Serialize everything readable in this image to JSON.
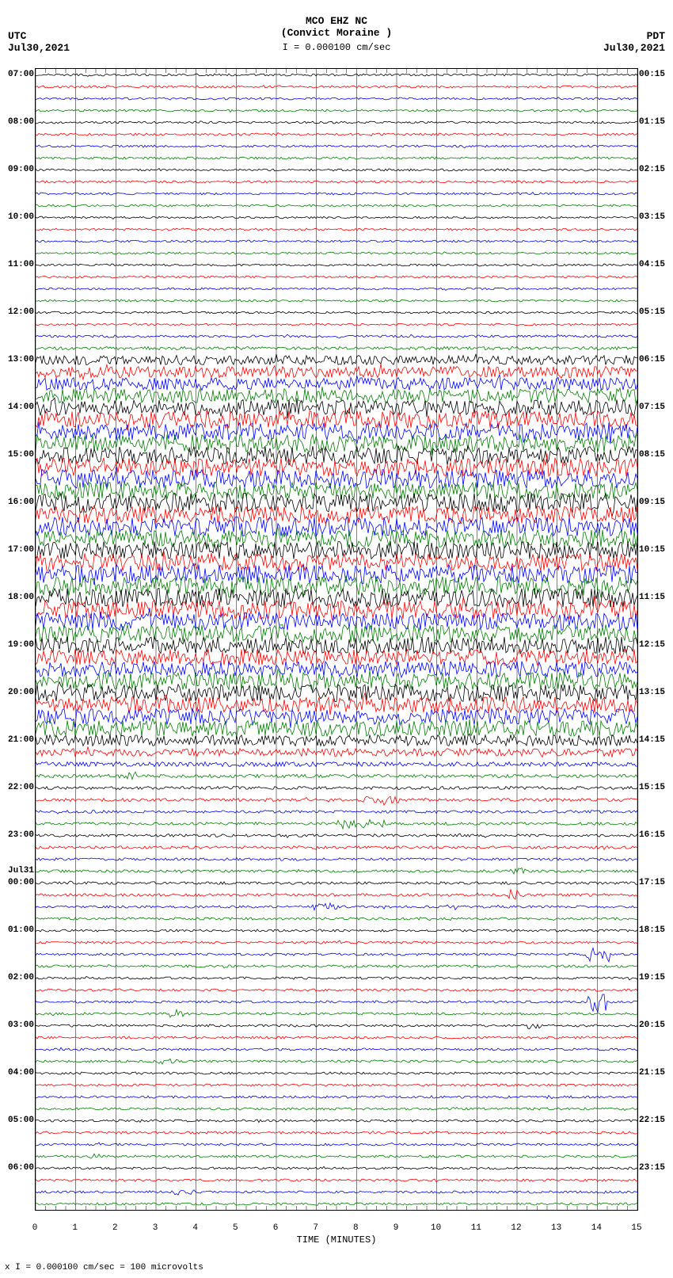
{
  "meta": {
    "title1": "MCO EHZ NC",
    "title2": "(Convict Moraine )",
    "scale_top": "= 0.000100 cm/sec",
    "tz_left": "UTC",
    "date_left": "Jul30,2021",
    "tz_right": "PDT",
    "date_right": "Jul30,2021",
    "xaxis_title": "TIME (MINUTES)",
    "footer": "= 0.000100 cm/sec =    100 microvolts",
    "scale_glyph": "I",
    "footer_prefix": "x"
  },
  "plot": {
    "width_inner": 760,
    "height_inner": 1440,
    "x_minutes": 15,
    "minor_per_minute": 4,
    "background": "#ffffff",
    "grid_color": "#000000",
    "colors": [
      "#000000",
      "#ff0000",
      "#0000ff",
      "#008000"
    ],
    "n_traces": 96,
    "trace_pitch": 15,
    "seed": 20210730,
    "noise_base_amp": 1.4,
    "amps": [
      1.4,
      1.4,
      1.4,
      1.4,
      1.4,
      1.4,
      1.4,
      1.4,
      1.4,
      1.4,
      1.4,
      1.4,
      1.3,
      1.3,
      1.3,
      1.3,
      1.3,
      1.3,
      1.3,
      1.3,
      1.3,
      1.3,
      1.6,
      2.0,
      6,
      7,
      8,
      9,
      10,
      11,
      11,
      11,
      11,
      12,
      12,
      11,
      12,
      11,
      12,
      11,
      11,
      11,
      12,
      12,
      12,
      12,
      11,
      11,
      11,
      10,
      10,
      11,
      11,
      10,
      10,
      10,
      7,
      5,
      3,
      2.2,
      2,
      2,
      1.8,
      1.8,
      1.8,
      1.8,
      1.7,
      1.7,
      1.7,
      1.8,
      1.6,
      1.6,
      1.5,
      1.5,
      1.5,
      1.6,
      1.5,
      1.5,
      1.5,
      1.5,
      1.5,
      1.5,
      1.5,
      1.5,
      1.5,
      1.5,
      1.5,
      1.5,
      1.5,
      1.5,
      1.5,
      1.5,
      1.5,
      1.5,
      1.5,
      1.5
    ],
    "events": [
      {
        "trace": 59,
        "minute": 2.3,
        "amp": 4,
        "width": 0.25
      },
      {
        "trace": 61,
        "minute": 8.6,
        "amp": 5,
        "width": 0.5
      },
      {
        "trace": 63,
        "minute": 8.1,
        "amp": 6,
        "width": 0.6
      },
      {
        "trace": 67,
        "minute": 12.0,
        "amp": 4,
        "width": 0.25
      },
      {
        "trace": 69,
        "minute": 12.0,
        "amp": 7,
        "width": 0.2
      },
      {
        "trace": 70,
        "minute": 7.2,
        "amp": 4,
        "width": 0.3
      },
      {
        "trace": 70,
        "minute": 10.3,
        "amp": 3,
        "width": 0.25
      },
      {
        "trace": 74,
        "minute": 14.0,
        "amp": 9,
        "width": 0.3
      },
      {
        "trace": 78,
        "minute": 14.0,
        "amp": 12,
        "width": 0.25
      },
      {
        "trace": 79,
        "minute": 3.5,
        "amp": 4,
        "width": 0.2
      },
      {
        "trace": 80,
        "minute": 12.4,
        "amp": 4,
        "width": 0.2
      },
      {
        "trace": 83,
        "minute": 3.3,
        "amp": 3,
        "width": 0.25
      },
      {
        "trace": 87,
        "minute": 10.5,
        "amp": 3,
        "width": 0.15
      },
      {
        "trace": 91,
        "minute": 1.4,
        "amp": 3,
        "width": 0.2
      },
      {
        "trace": 94,
        "minute": 3.7,
        "amp": 4,
        "width": 0.25
      }
    ]
  },
  "left_labels": [
    {
      "trace": 0,
      "text": "07:00"
    },
    {
      "trace": 4,
      "text": "08:00"
    },
    {
      "trace": 8,
      "text": "09:00"
    },
    {
      "trace": 12,
      "text": "10:00"
    },
    {
      "trace": 16,
      "text": "11:00"
    },
    {
      "trace": 20,
      "text": "12:00"
    },
    {
      "trace": 24,
      "text": "13:00"
    },
    {
      "trace": 28,
      "text": "14:00"
    },
    {
      "trace": 32,
      "text": "15:00"
    },
    {
      "trace": 36,
      "text": "16:00"
    },
    {
      "trace": 40,
      "text": "17:00"
    },
    {
      "trace": 44,
      "text": "18:00"
    },
    {
      "trace": 48,
      "text": "19:00"
    },
    {
      "trace": 52,
      "text": "20:00"
    },
    {
      "trace": 56,
      "text": "21:00"
    },
    {
      "trace": 60,
      "text": "22:00"
    },
    {
      "trace": 64,
      "text": "23:00"
    },
    {
      "trace": 67,
      "text": "Jul31"
    },
    {
      "trace": 68,
      "text": "00:00"
    },
    {
      "trace": 72,
      "text": "01:00"
    },
    {
      "trace": 76,
      "text": "02:00"
    },
    {
      "trace": 80,
      "text": "03:00"
    },
    {
      "trace": 84,
      "text": "04:00"
    },
    {
      "trace": 88,
      "text": "05:00"
    },
    {
      "trace": 92,
      "text": "06:00"
    }
  ],
  "right_labels": [
    {
      "trace": 0,
      "text": "00:15"
    },
    {
      "trace": 4,
      "text": "01:15"
    },
    {
      "trace": 8,
      "text": "02:15"
    },
    {
      "trace": 12,
      "text": "03:15"
    },
    {
      "trace": 16,
      "text": "04:15"
    },
    {
      "trace": 20,
      "text": "05:15"
    },
    {
      "trace": 24,
      "text": "06:15"
    },
    {
      "trace": 28,
      "text": "07:15"
    },
    {
      "trace": 32,
      "text": "08:15"
    },
    {
      "trace": 36,
      "text": "09:15"
    },
    {
      "trace": 40,
      "text": "10:15"
    },
    {
      "trace": 44,
      "text": "11:15"
    },
    {
      "trace": 48,
      "text": "12:15"
    },
    {
      "trace": 52,
      "text": "13:15"
    },
    {
      "trace": 56,
      "text": "14:15"
    },
    {
      "trace": 60,
      "text": "15:15"
    },
    {
      "trace": 64,
      "text": "16:15"
    },
    {
      "trace": 68,
      "text": "17:15"
    },
    {
      "trace": 72,
      "text": "18:15"
    },
    {
      "trace": 76,
      "text": "19:15"
    },
    {
      "trace": 80,
      "text": "20:15"
    },
    {
      "trace": 84,
      "text": "21:15"
    },
    {
      "trace": 88,
      "text": "22:15"
    },
    {
      "trace": 92,
      "text": "23:15"
    }
  ],
  "x_ticks": [
    "0",
    "1",
    "2",
    "3",
    "4",
    "5",
    "6",
    "7",
    "8",
    "9",
    "10",
    "11",
    "12",
    "13",
    "14",
    "15"
  ]
}
